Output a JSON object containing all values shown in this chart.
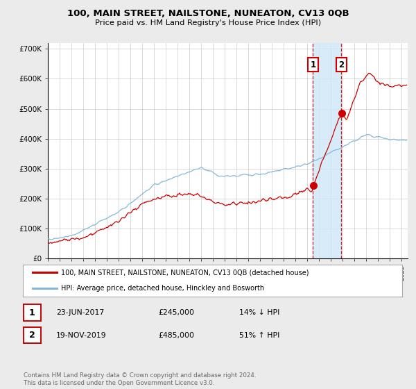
{
  "title_line1": "100, MAIN STREET, NAILSTONE, NUNEATON, CV13 0QB",
  "title_line2": "Price paid vs. HM Land Registry's House Price Index (HPI)",
  "legend_line1": "100, MAIN STREET, NAILSTONE, NUNEATON, CV13 0QB (detached house)",
  "legend_line2": "HPI: Average price, detached house, Hinckley and Bosworth",
  "ann1_label": "1",
  "ann1_date": "23-JUN-2017",
  "ann1_price": "£245,000",
  "ann1_hpi": "14% ↓ HPI",
  "ann2_label": "2",
  "ann2_date": "19-NOV-2019",
  "ann2_price": "£485,000",
  "ann2_hpi": "51% ↑ HPI",
  "footer": "Contains HM Land Registry data © Crown copyright and database right 2024.\nThis data is licensed under the Open Government Licence v3.0.",
  "hpi_color": "#85b8d8",
  "price_color": "#cc0000",
  "bg_color": "#ebebeb",
  "plot_bg": "#ffffff",
  "grid_color": "#cccccc",
  "shade_color": "#d0e8f8",
  "ylim_min": 0,
  "ylim_max": 720000,
  "yticks": [
    0,
    100000,
    200000,
    300000,
    400000,
    500000,
    600000,
    700000
  ],
  "ytick_labels": [
    "£0",
    "£100K",
    "£200K",
    "£300K",
    "£400K",
    "£500K",
    "£600K",
    "£700K"
  ],
  "sale1_year": 2017.47,
  "sale1_price": 245000,
  "sale2_year": 2019.88,
  "sale2_price": 485000,
  "xmin": 1995.0,
  "xmax": 2025.5
}
